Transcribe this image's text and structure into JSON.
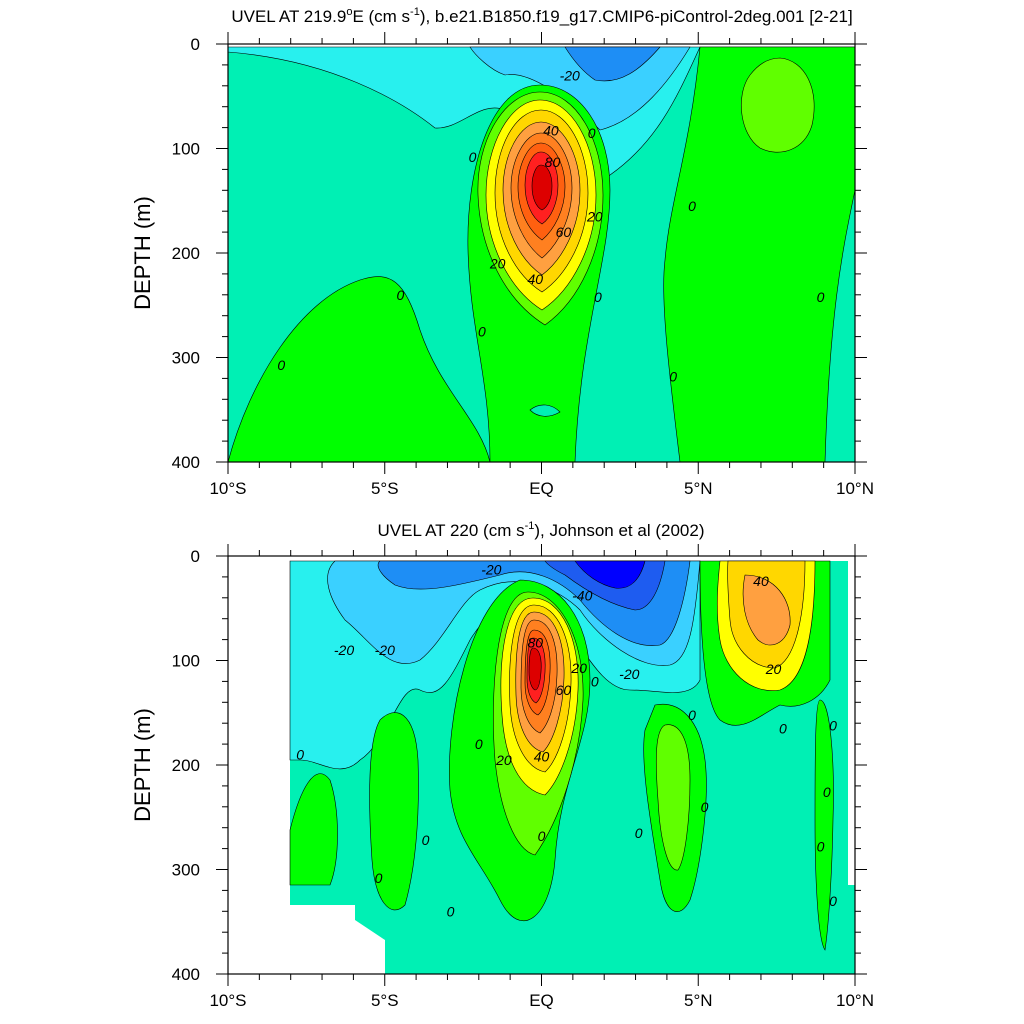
{
  "chart_data": [
    {
      "type": "contour",
      "title": "UVEL AT 219.9°E (cm s⁻¹), b.e21.B1850.f19_g17.CMIP6-piControl-2deg.001 [2-21]",
      "title_parts": {
        "pre": "UVEL AT 219.9",
        "deg": "o",
        "mid": "E (cm s",
        "sup": "-1",
        "post": "), b.e21.B1850.f19_g17.CMIP6-piControl-2deg.001 [2-21]"
      },
      "ylabel": "DEPTH (m)",
      "xlim": [
        -10,
        10
      ],
      "ylim": [
        400,
        0
      ],
      "x_ticks": [
        -10,
        -5,
        0,
        5,
        10
      ],
      "x_tick_labels": [
        "10°S",
        "5°S",
        "EQ",
        "5°N",
        "10°N"
      ],
      "y_ticks": [
        0,
        100,
        200,
        300,
        400
      ],
      "y_tick_labels": [
        "0",
        "100",
        "200",
        "300",
        "400"
      ],
      "contour_interval": 10,
      "contour_labels": [
        {
          "text": "-20",
          "lat": 0.9,
          "depth": 30
        },
        {
          "text": "0",
          "lat": 1.6,
          "depth": 85
        },
        {
          "text": "40",
          "lat": 0.3,
          "depth": 83
        },
        {
          "text": "80",
          "lat": 0.35,
          "depth": 113
        },
        {
          "text": "60",
          "lat": 0.7,
          "depth": 180
        },
        {
          "text": "20",
          "lat": 1.7,
          "depth": 165
        },
        {
          "text": "0",
          "lat": -2.2,
          "depth": 108
        },
        {
          "text": "20",
          "lat": -1.4,
          "depth": 210
        },
        {
          "text": "40",
          "lat": -0.2,
          "depth": 225
        },
        {
          "text": "0",
          "lat": 4.8,
          "depth": 155
        },
        {
          "text": "0",
          "lat": -4.5,
          "depth": 240
        },
        {
          "text": "0",
          "lat": 1.8,
          "depth": 242
        },
        {
          "text": "0",
          "lat": 8.9,
          "depth": 242
        },
        {
          "text": "0",
          "lat": -1.9,
          "depth": 275
        },
        {
          "text": "0",
          "lat": 4.2,
          "depth": 318
        },
        {
          "text": "0",
          "lat": -8.3,
          "depth": 307
        }
      ]
    },
    {
      "type": "contour",
      "title": "UVEL AT 220 (cm s⁻¹), Johnson et al (2002)",
      "title_parts": {
        "pre": "UVEL AT 220 (cm s",
        "sup": "-1",
        "post": "), Johnson et al (2002)"
      },
      "ylabel": "DEPTH (m)",
      "xlim": [
        -10,
        10
      ],
      "ylim": [
        400,
        0
      ],
      "x_ticks": [
        -10,
        -5,
        0,
        5,
        10
      ],
      "x_tick_labels": [
        "10°S",
        "5°S",
        "EQ",
        "5°N",
        "10°N"
      ],
      "y_ticks": [
        0,
        100,
        200,
        300,
        400
      ],
      "y_tick_labels": [
        "0",
        "100",
        "200",
        "300",
        "400"
      ],
      "contour_interval": 10,
      "contour_labels": [
        {
          "text": "-20",
          "lat": -1.6,
          "depth": 13
        },
        {
          "text": "-40",
          "lat": 1.3,
          "depth": 38
        },
        {
          "text": "-20",
          "lat": -6.3,
          "depth": 90
        },
        {
          "text": "-20",
          "lat": -5.0,
          "depth": 90
        },
        {
          "text": "80",
          "lat": -0.2,
          "depth": 83
        },
        {
          "text": "20",
          "lat": 1.2,
          "depth": 107
        },
        {
          "text": "60",
          "lat": 0.7,
          "depth": 128
        },
        {
          "text": "0",
          "lat": 1.7,
          "depth": 120
        },
        {
          "text": "-20",
          "lat": 2.8,
          "depth": 113
        },
        {
          "text": "40",
          "lat": 7.0,
          "depth": 24
        },
        {
          "text": "20",
          "lat": 7.4,
          "depth": 108
        },
        {
          "text": "0",
          "lat": 4.8,
          "depth": 152
        },
        {
          "text": "0",
          "lat": 7.7,
          "depth": 165
        },
        {
          "text": "0",
          "lat": 9.3,
          "depth": 162
        },
        {
          "text": "0",
          "lat": -2.0,
          "depth": 180
        },
        {
          "text": "20",
          "lat": -1.2,
          "depth": 195
        },
        {
          "text": "40",
          "lat": 0.0,
          "depth": 192
        },
        {
          "text": "0",
          "lat": -7.7,
          "depth": 190
        },
        {
          "text": "0",
          "lat": 5.2,
          "depth": 240
        },
        {
          "text": "0",
          "lat": 9.1,
          "depth": 226
        },
        {
          "text": "0",
          "lat": 0.0,
          "depth": 268
        },
        {
          "text": "0",
          "lat": 3.1,
          "depth": 265
        },
        {
          "text": "0",
          "lat": -3.7,
          "depth": 272
        },
        {
          "text": "0",
          "lat": 8.9,
          "depth": 278
        },
        {
          "text": "0",
          "lat": -5.2,
          "depth": 308
        },
        {
          "text": "0",
          "lat": -2.9,
          "depth": 340
        },
        {
          "text": "0",
          "lat": 9.3,
          "depth": 330
        }
      ]
    }
  ],
  "colorscale": {
    "levels": [
      -60,
      -50,
      -40,
      -30,
      -20,
      -10,
      0,
      10,
      20,
      30,
      40,
      50,
      60,
      70,
      80,
      90
    ],
    "colors": [
      "#0000ff",
      "#0000ff",
      "#1e5cf0",
      "#1e8ef5",
      "#3ad0ff",
      "#28f0ee",
      "#00f0b4",
      "#00ff00",
      "#60ff00",
      "#ffff00",
      "#ffd700",
      "#ffa040",
      "#ff8020",
      "#ff6010",
      "#ff2020",
      "#dd0000"
    ]
  }
}
